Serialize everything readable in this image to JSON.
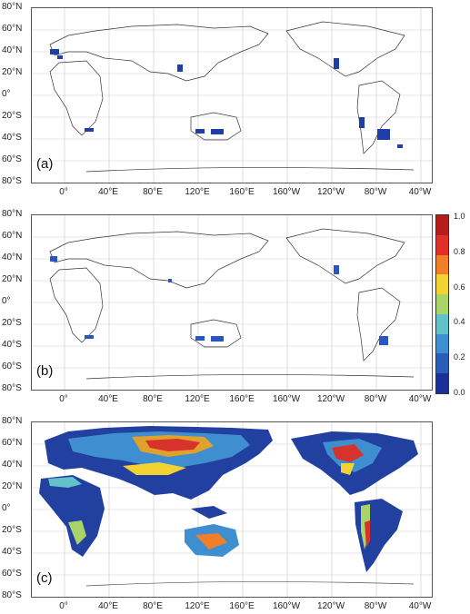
{
  "lat_labels": [
    "80°N",
    "60°N",
    "40°N",
    "20°N",
    "0°",
    "20°S",
    "40°S",
    "60°S",
    "80°S"
  ],
  "lon_labels": [
    "0°",
    "40°E",
    "80°E",
    "120°E",
    "160°E",
    "160°W",
    "120°W",
    "80°W",
    "40°W"
  ],
  "panels": [
    {
      "label": "(a)",
      "mode": "sparse"
    },
    {
      "label": "(b)",
      "mode": "sparse"
    },
    {
      "label": "(c)",
      "mode": "dense"
    }
  ],
  "colorbar": {
    "ticks": [
      "1.0",
      "0.8",
      "0.6",
      "0.4",
      "0.2",
      "0.0"
    ],
    "colors": [
      "#b51d1d",
      "#e0302a",
      "#f17f2a",
      "#f3d332",
      "#a9d46a",
      "#62c1c9",
      "#3f8fd0",
      "#2a5db8",
      "#1a2f97"
    ]
  }
}
